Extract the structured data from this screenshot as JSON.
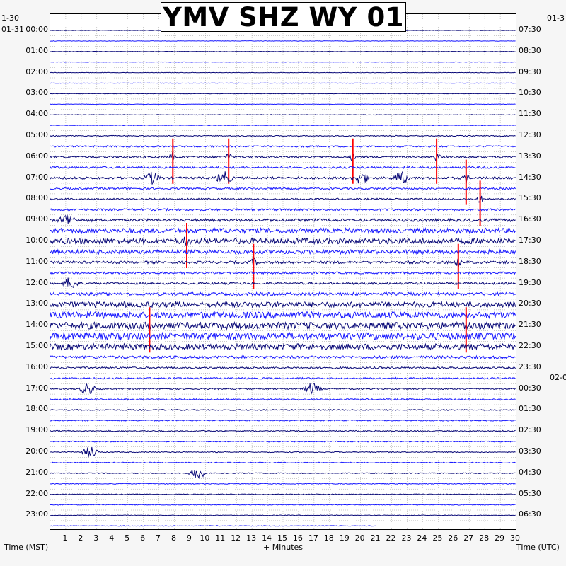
{
  "title": "YMV SHZ WY 01",
  "dates": {
    "left_top": "1-30",
    "left_start": "01-31",
    "right_top": "01-3",
    "right_mid": "02-0"
  },
  "left_hours": [
    "00:00",
    "01:00",
    "02:00",
    "03:00",
    "04:00",
    "05:00",
    "06:00",
    "07:00",
    "08:00",
    "09:00",
    "10:00",
    "11:00",
    "12:00",
    "13:00",
    "14:00",
    "15:00",
    "16:00",
    "17:00",
    "18:00",
    "19:00",
    "20:00",
    "21:00",
    "22:00",
    "23:00"
  ],
  "right_hours": [
    "07:30",
    "08:30",
    "09:30",
    "10:30",
    "11:30",
    "12:30",
    "13:30",
    "14:30",
    "15:30",
    "16:30",
    "17:30",
    "18:30",
    "19:30",
    "20:30",
    "21:30",
    "22:30",
    "23:30",
    "00:30",
    "01:30",
    "02:30",
    "03:30",
    "04:30",
    "05:30",
    "06:30"
  ],
  "x_ticks": [
    "1",
    "2",
    "3",
    "4",
    "5",
    "6",
    "7",
    "8",
    "9",
    "10",
    "11",
    "12",
    "13",
    "14",
    "15",
    "16",
    "17",
    "18",
    "19",
    "20",
    "21",
    "22",
    "23",
    "24",
    "25",
    "26",
    "27",
    "28",
    "29",
    "30"
  ],
  "labels": {
    "left_axis": "Time (MST)",
    "x_axis": "+ Minutes",
    "right_axis": "Time (UTC)"
  },
  "colors": {
    "trace_dark": "#0a0a78",
    "trace_blue": "#1a1aff",
    "clipped": "#ff0000",
    "background": "#f6f6f6"
  },
  "chart_data": {
    "type": "line",
    "title": "YMV SHZ WY 01",
    "xlabel": "+ Minutes",
    "ylabel": "Time (MST)",
    "xlim": [
      0,
      30
    ],
    "rows_per_hour": 2,
    "row_minutes": 30,
    "last_row_end_minute": 21,
    "grid": true,
    "trace_colors_alternate": [
      "dark",
      "blue"
    ],
    "activity_by_row": [
      0.2,
      0.2,
      0.2,
      0.2,
      0.2,
      0.2,
      0.2,
      0.2,
      0.25,
      0.25,
      0.4,
      0.7,
      0.9,
      0.9,
      1.0,
      0.8,
      0.7,
      0.9,
      1.2,
      2.2,
      2.4,
      1.8,
      1.1,
      0.9,
      0.9,
      1.3,
      2.4,
      2.8,
      3.0,
      3.0,
      2.6,
      1.2,
      0.8,
      0.7,
      0.6,
      0.6,
      0.5,
      0.5,
      0.5,
      0.45,
      0.4,
      0.4,
      0.4,
      0.4,
      0.35,
      0.35,
      0.3,
      0.3
    ],
    "events": [
      {
        "hour": "06:00",
        "minute": 7.9,
        "type": "spike"
      },
      {
        "hour": "06:00",
        "minute": 11.5,
        "type": "spike"
      },
      {
        "hour": "06:00",
        "minute": 19.5,
        "type": "spike"
      },
      {
        "hour": "06:00",
        "minute": 24.9,
        "type": "spike"
      },
      {
        "hour": "07:00",
        "minute": 6.6,
        "type": "burst"
      },
      {
        "hour": "07:00",
        "minute": 11.2,
        "type": "burst"
      },
      {
        "hour": "07:00",
        "minute": 20.0,
        "type": "burst"
      },
      {
        "hour": "07:00",
        "minute": 22.6,
        "type": "burst"
      },
      {
        "hour": "07:00",
        "minute": 26.8,
        "type": "spike"
      },
      {
        "hour": "08:00",
        "minute": 27.7,
        "type": "spike"
      },
      {
        "hour": "09:00",
        "minute": 1.1,
        "type": "burst"
      },
      {
        "hour": "10:00",
        "minute": 8.8,
        "type": "spike"
      },
      {
        "hour": "11:00",
        "minute": 13.1,
        "type": "spike"
      },
      {
        "hour": "11:00",
        "minute": 26.3,
        "type": "spike"
      },
      {
        "hour": "12:00",
        "minute": 1.3,
        "type": "burst"
      },
      {
        "hour": "14:00",
        "minute": 6.4,
        "type": "spike"
      },
      {
        "hour": "14:00",
        "minute": 26.8,
        "type": "spike"
      },
      {
        "hour": "17:00",
        "minute": 2.4,
        "type": "burst"
      },
      {
        "hour": "17:00",
        "minute": 16.9,
        "type": "burst"
      },
      {
        "hour": "20:00",
        "minute": 2.6,
        "type": "burst"
      },
      {
        "hour": "21:00",
        "minute": 9.5,
        "type": "burst"
      }
    ]
  }
}
